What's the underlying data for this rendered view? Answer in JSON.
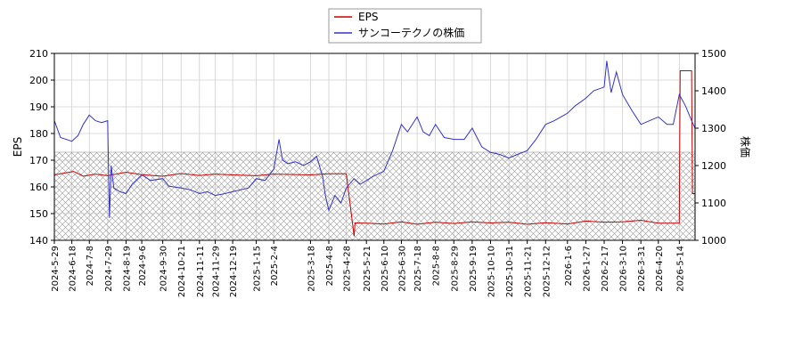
{
  "chart_data": {
    "type": "line",
    "legend": {
      "placement": "top-center",
      "entries": [
        {
          "name": "EPS",
          "color": "#cc0000"
        },
        {
          "name": "サンコーテクノの株価",
          "color": "#3333cc"
        }
      ]
    },
    "y_left": {
      "label": "EPS",
      "ylim": [
        140,
        210
      ],
      "ticks": [
        140,
        150,
        160,
        170,
        180,
        190,
        200,
        210
      ]
    },
    "y_right": {
      "label": "株価",
      "ylim": [
        1000,
        1500
      ],
      "ticks": [
        1000,
        1100,
        1200,
        1300,
        1400,
        1500
      ]
    },
    "xlim": [
      "2024-05-29",
      "2026-06-01"
    ],
    "x_tick_labels": [
      "2024-5-29",
      "2024-6-18",
      "2024-7-8",
      "2024-7-29",
      "2024-8-19",
      "2024-9-6",
      "2024-9-30",
      "2024-10-21",
      "2024-11-11",
      "2024-11-29",
      "2024-12-19",
      "2025-1-15",
      "2025-2-4",
      "2025-3-18",
      "2025-4-8",
      "2025-4-28",
      "2025-5-21",
      "2025-6-10",
      "2025-6-30",
      "2025-7-18",
      "2025-8-8",
      "2025-8-29",
      "2025-9-19",
      "2025-10-10",
      "2025-10-31",
      "2025-11-21",
      "2025-12-12",
      "2026-1-6",
      "2026-1-27",
      "2026-2-17",
      "2026-3-10",
      "2026-3-31",
      "2026-4-20",
      "2026-5-14"
    ],
    "grid": true,
    "hatched_band": {
      "series": "EPS",
      "range": [
        140,
        173
      ]
    },
    "series": [
      {
        "name": "EPS",
        "axis": "left",
        "color": "#cc0000",
        "x": [
          "2024-05-29",
          "2024-06-10",
          "2024-06-20",
          "2024-07-01",
          "2024-07-15",
          "2024-07-29",
          "2024-08-19",
          "2024-09-06",
          "2024-09-30",
          "2024-10-21",
          "2024-11-11",
          "2024-11-29",
          "2024-12-19",
          "2025-01-15",
          "2025-02-04",
          "2025-03-18",
          "2025-04-08",
          "2025-04-28",
          "2025-05-07",
          "2025-05-08",
          "2025-05-21",
          "2025-06-10",
          "2025-06-30",
          "2025-07-18",
          "2025-08-08",
          "2025-08-29",
          "2025-09-19",
          "2025-10-10",
          "2025-10-31",
          "2025-11-21",
          "2025-12-12",
          "2026-01-06",
          "2026-01-27",
          "2026-02-17",
          "2026-03-10",
          "2026-03-31",
          "2026-04-20",
          "2026-05-14",
          "2026-05-15",
          "2026-05-28",
          "2026-05-29",
          "2026-06-01"
        ],
        "values": [
          164.5,
          165.2,
          165.8,
          164.0,
          164.8,
          164.2,
          165.5,
          164.6,
          164.0,
          165.0,
          164.3,
          164.8,
          164.5,
          164.2,
          164.8,
          164.5,
          164.9,
          164.9,
          141.5,
          146.5,
          146.4,
          146.1,
          146.9,
          146.0,
          146.8,
          146.3,
          146.9,
          146.5,
          146.8,
          146.0,
          146.6,
          146.1,
          147.2,
          146.8,
          146.9,
          147.5,
          146.4,
          146.4,
          203.5,
          203.5,
          157.5,
          157.5
        ]
      },
      {
        "name": "サンコーテクノの株価",
        "axis": "right",
        "color": "#3333cc",
        "x": [
          "2024-05-29",
          "2024-06-05",
          "2024-06-18",
          "2024-06-25",
          "2024-07-01",
          "2024-07-08",
          "2024-07-15",
          "2024-07-22",
          "2024-07-29",
          "2024-07-31",
          "2024-08-02",
          "2024-08-05",
          "2024-08-12",
          "2024-08-19",
          "2024-08-26",
          "2024-09-06",
          "2024-09-16",
          "2024-09-30",
          "2024-10-07",
          "2024-10-21",
          "2024-11-01",
          "2024-11-11",
          "2024-11-20",
          "2024-11-29",
          "2024-12-10",
          "2024-12-19",
          "2025-01-06",
          "2025-01-15",
          "2025-01-25",
          "2025-02-04",
          "2025-02-10",
          "2025-02-14",
          "2025-02-20",
          "2025-03-01",
          "2025-03-10",
          "2025-03-18",
          "2025-03-25",
          "2025-04-01",
          "2025-04-04",
          "2025-04-08",
          "2025-04-15",
          "2025-04-22",
          "2025-04-28",
          "2025-05-07",
          "2025-05-14",
          "2025-05-21",
          "2025-05-28",
          "2025-06-10",
          "2025-06-20",
          "2025-06-30",
          "2025-07-07",
          "2025-07-18",
          "2025-07-25",
          "2025-08-01",
          "2025-08-08",
          "2025-08-18",
          "2025-08-29",
          "2025-09-10",
          "2025-09-19",
          "2025-09-30",
          "2025-10-10",
          "2025-10-20",
          "2025-10-31",
          "2025-11-10",
          "2025-11-21",
          "2025-12-01",
          "2025-12-12",
          "2025-12-22",
          "2026-01-06",
          "2026-01-15",
          "2026-01-27",
          "2026-02-05",
          "2026-02-17",
          "2026-02-20",
          "2026-02-25",
          "2026-03-03",
          "2026-03-10",
          "2026-03-20",
          "2026-03-31",
          "2026-04-10",
          "2026-04-20",
          "2026-04-30",
          "2026-05-07",
          "2026-05-14",
          "2026-05-21",
          "2026-05-28",
          "2026-06-01"
        ],
        "values": [
          1320,
          1275,
          1265,
          1280,
          1310,
          1335,
          1320,
          1315,
          1320,
          1060,
          1200,
          1140,
          1130,
          1125,
          1150,
          1175,
          1160,
          1165,
          1145,
          1140,
          1135,
          1125,
          1130,
          1120,
          1125,
          1130,
          1140,
          1165,
          1160,
          1190,
          1270,
          1215,
          1205,
          1210,
          1200,
          1210,
          1225,
          1170,
          1120,
          1080,
          1120,
          1100,
          1140,
          1165,
          1150,
          1160,
          1170,
          1185,
          1240,
          1310,
          1290,
          1330,
          1290,
          1280,
          1310,
          1275,
          1270,
          1270,
          1300,
          1250,
          1235,
          1230,
          1220,
          1230,
          1240,
          1270,
          1310,
          1320,
          1340,
          1360,
          1380,
          1400,
          1410,
          1480,
          1395,
          1450,
          1390,
          1350,
          1310,
          1320,
          1330,
          1310,
          1310,
          1390,
          1360,
          1320,
          1300
        ]
      }
    ]
  }
}
